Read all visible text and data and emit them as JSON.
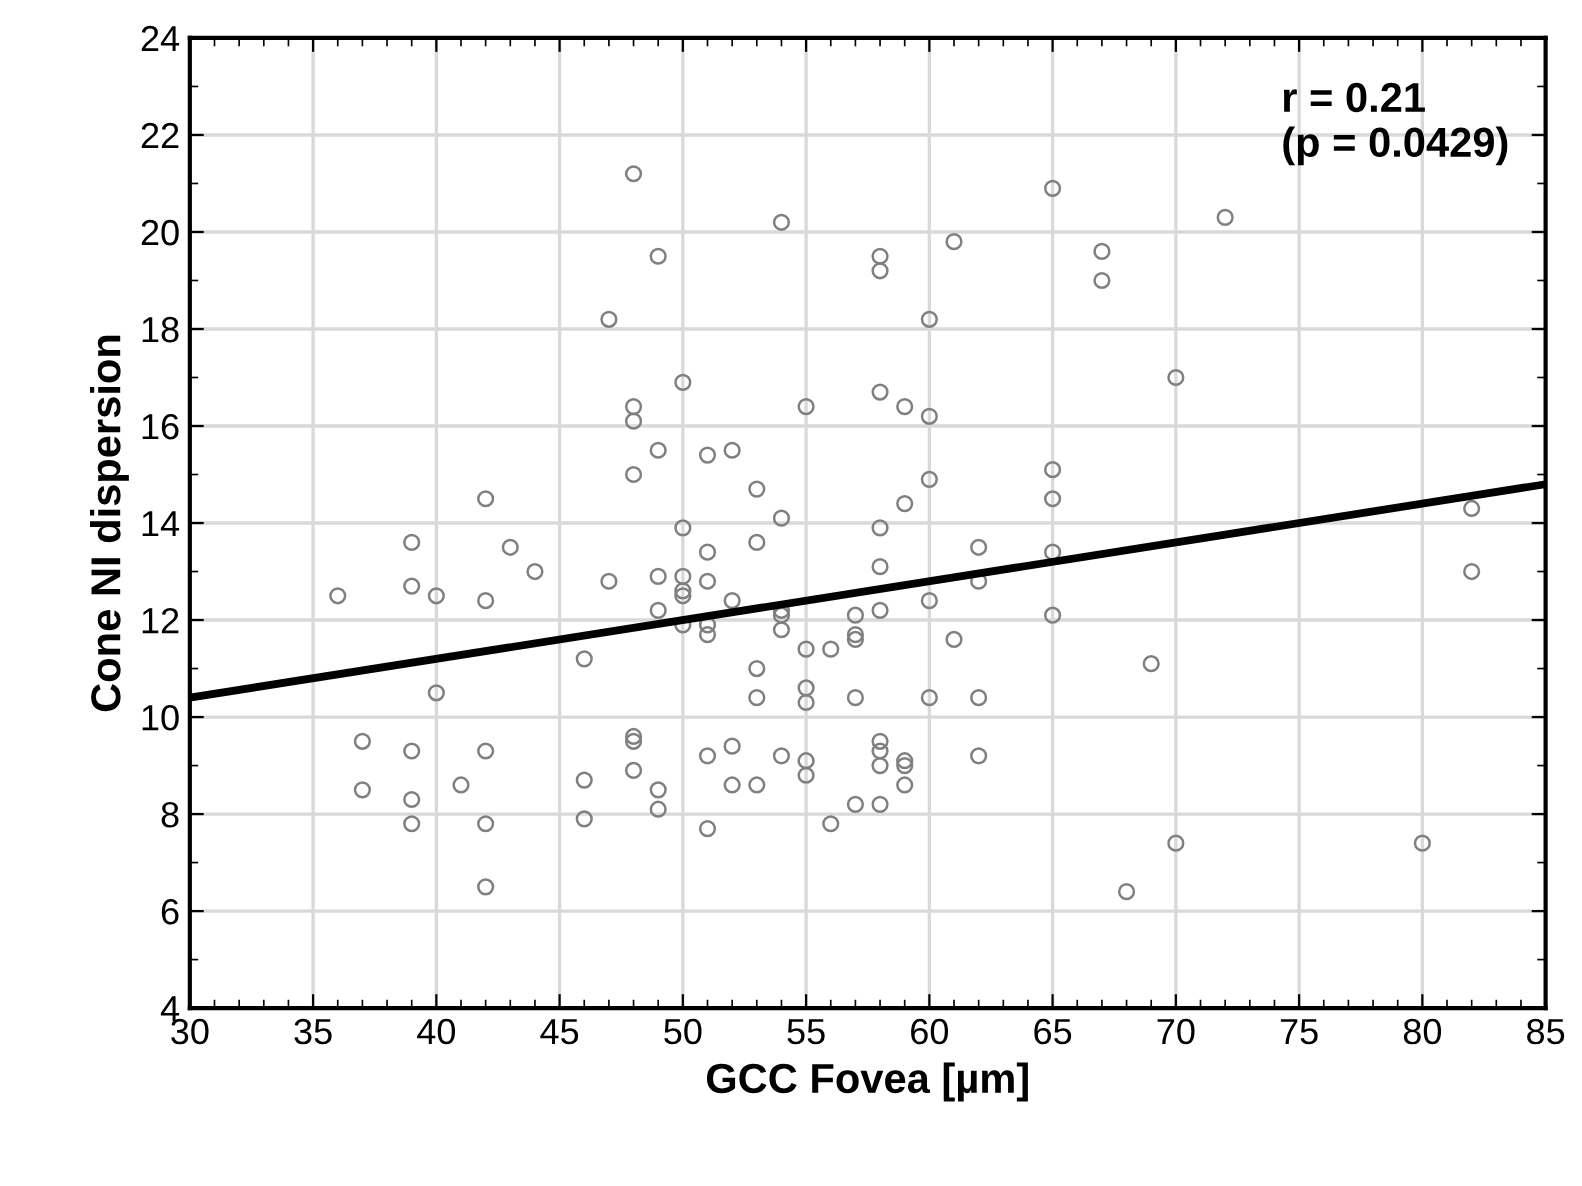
{
  "chart_data": {
    "type": "scatter",
    "xlabel": "GCC Fovea [µm]",
    "ylabel": "Cone NI dispersion",
    "xlim": [
      30,
      85
    ],
    "xticks": [
      30,
      35,
      40,
      45,
      50,
      55,
      60,
      65,
      70,
      75,
      80,
      85
    ],
    "ylim": [
      4,
      24
    ],
    "yticks": [
      4,
      6,
      8,
      10,
      12,
      14,
      16,
      18,
      20,
      22,
      24
    ],
    "grid": true,
    "legend": false,
    "annotations": [
      "r = 0.21\n(p = 0.0429)"
    ],
    "series": [
      {
        "color": "#808080",
        "marker": "circle",
        "x": [
          36,
          37,
          37,
          39,
          39,
          39,
          39,
          39,
          40,
          40,
          41,
          42,
          42,
          42,
          42,
          42,
          43,
          44,
          46,
          46,
          46,
          47,
          47,
          48,
          48,
          48,
          48,
          48,
          48,
          48,
          49,
          49,
          49,
          49,
          49,
          49,
          50,
          50,
          50,
          50,
          50,
          50,
          51,
          51,
          51,
          51,
          51,
          51,
          51,
          52,
          52,
          52,
          52,
          53,
          53,
          53,
          53,
          53,
          54,
          54,
          54,
          54,
          54,
          54,
          55,
          55,
          55,
          55,
          55,
          55,
          56,
          56,
          57,
          57,
          57,
          57,
          57,
          58,
          58,
          58,
          58,
          58,
          58,
          58,
          58,
          58,
          58,
          59,
          59,
          59,
          59,
          59,
          60,
          60,
          60,
          60,
          60,
          61,
          61,
          62,
          62,
          62,
          62,
          65,
          65,
          65,
          65,
          65,
          67,
          67,
          68,
          69,
          70,
          70,
          72,
          80,
          82,
          82
        ],
        "values": [
          12.5,
          9.5,
          8.5,
          13.6,
          12.7,
          9.3,
          8.3,
          7.8,
          12.5,
          10.5,
          8.6,
          14.5,
          12.4,
          9.3,
          7.8,
          6.5,
          13.5,
          13.0,
          11.2,
          8.7,
          7.9,
          18.2,
          12.8,
          21.2,
          16.4,
          16.1,
          15.0,
          9.6,
          9.5,
          8.9,
          19.5,
          15.5,
          12.9,
          12.2,
          8.5,
          8.1,
          16.9,
          13.9,
          12.9,
          12.6,
          12.5,
          11.9,
          15.4,
          13.4,
          12.8,
          11.9,
          11.7,
          9.2,
          7.7,
          15.5,
          12.4,
          9.4,
          8.6,
          14.7,
          13.6,
          11.0,
          10.4,
          8.6,
          20.2,
          14.1,
          12.2,
          12.1,
          11.8,
          9.2,
          16.4,
          11.4,
          10.6,
          10.3,
          9.1,
          8.8,
          11.4,
          7.8,
          12.1,
          11.7,
          11.6,
          10.4,
          8.2,
          19.5,
          19.2,
          16.7,
          13.9,
          13.1,
          12.2,
          9.5,
          9.3,
          9.0,
          8.2,
          16.4,
          14.4,
          9.1,
          9.0,
          8.6,
          18.2,
          16.2,
          14.9,
          12.4,
          10.4,
          19.8,
          11.6,
          13.5,
          12.8,
          10.4,
          9.2,
          20.9,
          15.1,
          14.5,
          13.4,
          12.1,
          19.6,
          19.0,
          6.4,
          11.1,
          17.0,
          7.4,
          20.3,
          7.4,
          14.3,
          13.0
        ]
      },
      {
        "type": "line",
        "color": "#000000",
        "marker": "none",
        "line_style": "solid",
        "x": [
          30,
          85
        ],
        "values": [
          10.4,
          14.8
        ]
      }
    ]
  }
}
